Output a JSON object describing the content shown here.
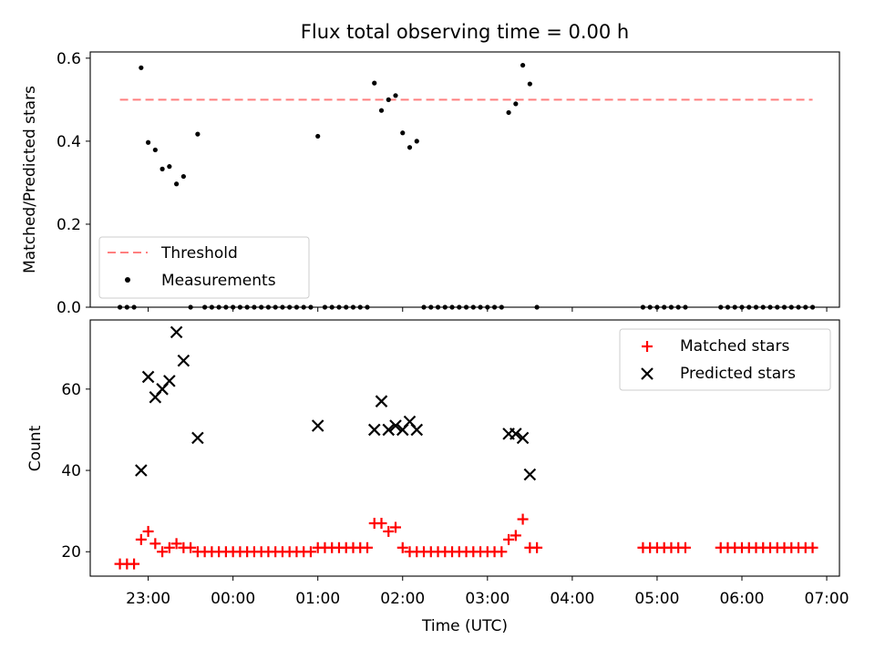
{
  "chart_data": [
    {
      "type": "scatter",
      "title": "Flux total observing time = 0.00 h",
      "xlabel": "",
      "ylabel": "Matched/Predicted stars",
      "xlim": [
        "22:19",
        "07:09"
      ],
      "ylim": [
        0,
        0.615
      ],
      "yticks": [
        0.0,
        0.2,
        0.4,
        0.6
      ],
      "ytick_labels": [
        "0.0",
        "0.2",
        "0.4",
        "0.6"
      ],
      "legend_location": "lower-left",
      "threshold": {
        "name": "Threshold",
        "value": 0.5,
        "x_start": "22:40",
        "x_end": "06:50",
        "color": "#ff7f7f",
        "style": "dashed"
      },
      "series": [
        {
          "name": "Measurements",
          "color": "#000000",
          "marker": "dot",
          "points": [
            [
              "22:40",
              0
            ],
            [
              "22:45",
              0
            ],
            [
              "22:50",
              0
            ],
            [
              "22:55",
              0.577
            ],
            [
              "23:00",
              0.397
            ],
            [
              "23:05",
              0.379
            ],
            [
              "23:10",
              0.333
            ],
            [
              "23:15",
              0.339
            ],
            [
              "23:20",
              0.297
            ],
            [
              "23:25",
              0.315
            ],
            [
              "23:30",
              0
            ],
            [
              "23:35",
              0.417
            ],
            [
              "23:40",
              0
            ],
            [
              "23:45",
              0
            ],
            [
              "23:50",
              0
            ],
            [
              "23:55",
              0
            ],
            [
              "00:00",
              0
            ],
            [
              "00:05",
              0
            ],
            [
              "00:10",
              0
            ],
            [
              "00:15",
              0
            ],
            [
              "00:20",
              0
            ],
            [
              "00:25",
              0
            ],
            [
              "00:30",
              0
            ],
            [
              "00:35",
              0
            ],
            [
              "00:40",
              0
            ],
            [
              "00:45",
              0
            ],
            [
              "00:50",
              0
            ],
            [
              "00:55",
              0
            ],
            [
              "01:00",
              0.412
            ],
            [
              "01:05",
              0
            ],
            [
              "01:10",
              0
            ],
            [
              "01:15",
              0
            ],
            [
              "01:20",
              0
            ],
            [
              "01:25",
              0
            ],
            [
              "01:30",
              0
            ],
            [
              "01:35",
              0
            ],
            [
              "01:40",
              0.54
            ],
            [
              "01:45",
              0.474
            ],
            [
              "01:50",
              0.5
            ],
            [
              "01:55",
              0.51
            ],
            [
              "02:00",
              0.42
            ],
            [
              "02:05",
              0.385
            ],
            [
              "02:10",
              0.4
            ],
            [
              "02:15",
              0
            ],
            [
              "02:20",
              0
            ],
            [
              "02:25",
              0
            ],
            [
              "02:30",
              0
            ],
            [
              "02:35",
              0
            ],
            [
              "02:40",
              0
            ],
            [
              "02:45",
              0
            ],
            [
              "02:50",
              0
            ],
            [
              "02:55",
              0
            ],
            [
              "03:00",
              0
            ],
            [
              "03:05",
              0
            ],
            [
              "03:10",
              0
            ],
            [
              "03:15",
              0.469
            ],
            [
              "03:20",
              0.49
            ],
            [
              "03:25",
              0.583
            ],
            [
              "03:30",
              0.538
            ],
            [
              "03:35",
              0
            ],
            [
              "04:50",
              0
            ],
            [
              "04:55",
              0
            ],
            [
              "05:00",
              0
            ],
            [
              "05:05",
              0
            ],
            [
              "05:10",
              0
            ],
            [
              "05:15",
              0
            ],
            [
              "05:20",
              0
            ],
            [
              "05:45",
              0
            ],
            [
              "05:50",
              0
            ],
            [
              "05:55",
              0
            ],
            [
              "06:00",
              0
            ],
            [
              "06:05",
              0
            ],
            [
              "06:10",
              0
            ],
            [
              "06:15",
              0
            ],
            [
              "06:20",
              0
            ],
            [
              "06:25",
              0
            ],
            [
              "06:30",
              0
            ],
            [
              "06:35",
              0
            ],
            [
              "06:40",
              0
            ],
            [
              "06:45",
              0
            ],
            [
              "06:50",
              0
            ]
          ]
        }
      ]
    },
    {
      "type": "scatter",
      "title": "",
      "xlabel": "Time (UTC)",
      "ylabel": "Count",
      "xlim": [
        "22:19",
        "07:09"
      ],
      "ylim": [
        14,
        77
      ],
      "yticks": [
        20,
        40,
        60
      ],
      "ytick_labels": [
        "20",
        "40",
        "60"
      ],
      "xticks": [
        "23:00",
        "00:00",
        "01:00",
        "02:00",
        "03:00",
        "04:00",
        "05:00",
        "06:00",
        "07:00"
      ],
      "legend_location": "upper-right",
      "series": [
        {
          "name": "Matched stars",
          "color": "#ff0000",
          "marker": "plus",
          "points": [
            [
              "22:40",
              17
            ],
            [
              "22:45",
              17
            ],
            [
              "22:50",
              17
            ],
            [
              "22:55",
              23
            ],
            [
              "23:00",
              25
            ],
            [
              "23:05",
              22
            ],
            [
              "23:10",
              20
            ],
            [
              "23:15",
              21
            ],
            [
              "23:20",
              22
            ],
            [
              "23:25",
              21
            ],
            [
              "23:30",
              21
            ],
            [
              "23:35",
              20
            ],
            [
              "23:40",
              20
            ],
            [
              "23:45",
              20
            ],
            [
              "23:50",
              20
            ],
            [
              "23:55",
              20
            ],
            [
              "00:00",
              20
            ],
            [
              "00:05",
              20
            ],
            [
              "00:10",
              20
            ],
            [
              "00:15",
              20
            ],
            [
              "00:20",
              20
            ],
            [
              "00:25",
              20
            ],
            [
              "00:30",
              20
            ],
            [
              "00:35",
              20
            ],
            [
              "00:40",
              20
            ],
            [
              "00:45",
              20
            ],
            [
              "00:50",
              20
            ],
            [
              "00:55",
              20
            ],
            [
              "01:00",
              21
            ],
            [
              "01:05",
              21
            ],
            [
              "01:10",
              21
            ],
            [
              "01:15",
              21
            ],
            [
              "01:20",
              21
            ],
            [
              "01:25",
              21
            ],
            [
              "01:30",
              21
            ],
            [
              "01:35",
              21
            ],
            [
              "01:40",
              27
            ],
            [
              "01:45",
              27
            ],
            [
              "01:50",
              25
            ],
            [
              "01:55",
              26
            ],
            [
              "02:00",
              21
            ],
            [
              "02:05",
              20
            ],
            [
              "02:10",
              20
            ],
            [
              "02:15",
              20
            ],
            [
              "02:20",
              20
            ],
            [
              "02:25",
              20
            ],
            [
              "02:30",
              20
            ],
            [
              "02:35",
              20
            ],
            [
              "02:40",
              20
            ],
            [
              "02:45",
              20
            ],
            [
              "02:50",
              20
            ],
            [
              "02:55",
              20
            ],
            [
              "03:00",
              20
            ],
            [
              "03:05",
              20
            ],
            [
              "03:10",
              20
            ],
            [
              "03:15",
              23
            ],
            [
              "03:20",
              24
            ],
            [
              "03:25",
              28
            ],
            [
              "03:30",
              21
            ],
            [
              "03:35",
              21
            ],
            [
              "04:50",
              21
            ],
            [
              "04:55",
              21
            ],
            [
              "05:00",
              21
            ],
            [
              "05:05",
              21
            ],
            [
              "05:10",
              21
            ],
            [
              "05:15",
              21
            ],
            [
              "05:20",
              21
            ],
            [
              "05:45",
              21
            ],
            [
              "05:50",
              21
            ],
            [
              "05:55",
              21
            ],
            [
              "06:00",
              21
            ],
            [
              "06:05",
              21
            ],
            [
              "06:10",
              21
            ],
            [
              "06:15",
              21
            ],
            [
              "06:20",
              21
            ],
            [
              "06:25",
              21
            ],
            [
              "06:30",
              21
            ],
            [
              "06:35",
              21
            ],
            [
              "06:40",
              21
            ],
            [
              "06:45",
              21
            ],
            [
              "06:50",
              21
            ]
          ]
        },
        {
          "name": "Predicted stars",
          "color": "#000000",
          "marker": "x",
          "points": [
            [
              "22:55",
              40
            ],
            [
              "23:00",
              63
            ],
            [
              "23:05",
              58
            ],
            [
              "23:10",
              60
            ],
            [
              "23:15",
              62
            ],
            [
              "23:20",
              74
            ],
            [
              "23:25",
              67
            ],
            [
              "23:35",
              48
            ],
            [
              "01:00",
              51
            ],
            [
              "01:40",
              50
            ],
            [
              "01:45",
              57
            ],
            [
              "01:50",
              50
            ],
            [
              "01:55",
              51
            ],
            [
              "02:00",
              50
            ],
            [
              "02:05",
              52
            ],
            [
              "02:10",
              50
            ],
            [
              "03:15",
              49
            ],
            [
              "03:20",
              49
            ],
            [
              "03:25",
              48
            ],
            [
              "03:30",
              39
            ]
          ]
        }
      ]
    }
  ]
}
